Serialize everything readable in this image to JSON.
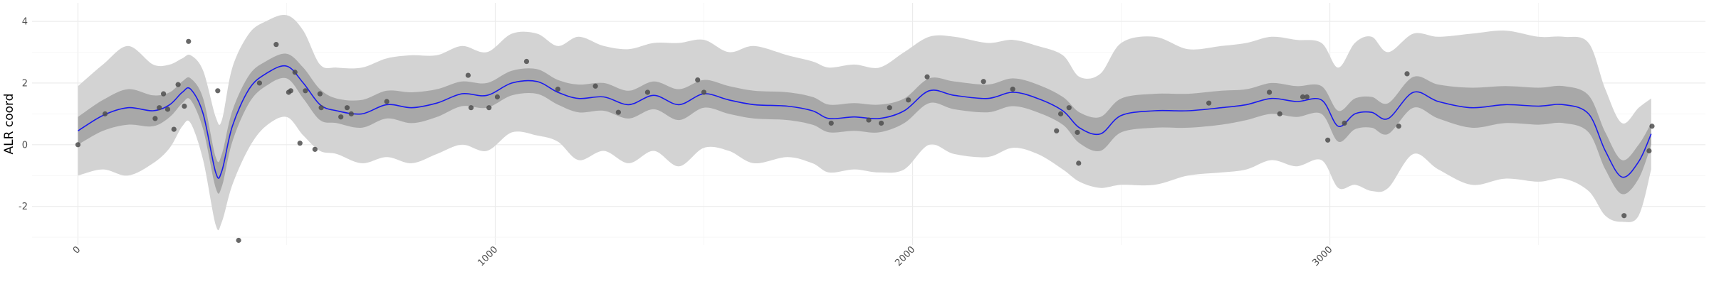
{
  "chart_data": {
    "type": "line",
    "title": "",
    "xlabel": "",
    "ylabel": "ALR coord",
    "xlim": [
      -110,
      3900
    ],
    "ylim": [
      -3.25,
      4.6
    ],
    "x_ticks": [
      0,
      1000,
      2000,
      3000
    ],
    "x_tick_labels": [
      "0",
      "1000",
      "2000",
      "3000"
    ],
    "y_ticks": [
      -2,
      0,
      2,
      4
    ],
    "y_tick_labels": [
      "-2",
      "0",
      "2",
      "4"
    ],
    "grid": true,
    "legend": "none",
    "colors": {
      "mean_line": "#1a1aee",
      "inner_band": "#a8a8a8",
      "outer_band": "#d3d3d3",
      "points": "#4d4d4d",
      "grid_major": "#ebebeb",
      "grid_minor": "#f4f4f4"
    },
    "series": [
      {
        "role": "mean",
        "x": [
          0,
          60,
          120,
          180,
          220,
          250,
          270,
          300,
          330,
          345,
          370,
          410,
          450,
          500,
          540,
          580,
          620,
          680,
          740,
          800,
          860,
          920,
          980,
          1040,
          1100,
          1150,
          1200,
          1260,
          1320,
          1380,
          1440,
          1500,
          1560,
          1620,
          1700,
          1760,
          1800,
          1860,
          1920,
          1980,
          2040,
          2100,
          2180,
          2240,
          2300,
          2360,
          2400,
          2450,
          2500,
          2580,
          2660,
          2740,
          2800,
          2860,
          2920,
          2980,
          3020,
          3060,
          3100,
          3140,
          3200,
          3260,
          3340,
          3420,
          3500,
          3560,
          3620,
          3660,
          3700,
          3740,
          3770
        ],
        "y": [
          0.45,
          0.95,
          1.2,
          1.1,
          1.3,
          1.7,
          1.8,
          1.0,
          -0.9,
          -0.85,
          0.6,
          1.8,
          2.3,
          2.55,
          2.0,
          1.3,
          1.1,
          1.0,
          1.3,
          1.2,
          1.35,
          1.65,
          1.6,
          2.0,
          2.05,
          1.7,
          1.5,
          1.55,
          1.3,
          1.6,
          1.3,
          1.65,
          1.45,
          1.3,
          1.25,
          1.1,
          0.85,
          0.9,
          0.85,
          1.1,
          1.75,
          1.6,
          1.5,
          1.7,
          1.5,
          1.1,
          0.55,
          0.35,
          0.95,
          1.1,
          1.1,
          1.2,
          1.3,
          1.5,
          1.4,
          1.45,
          0.6,
          1.0,
          1.05,
          0.85,
          1.7,
          1.4,
          1.2,
          1.3,
          1.25,
          1.3,
          1.0,
          -0.2,
          -1.05,
          -0.55,
          0.35
        ]
      },
      {
        "role": "inner-band",
        "x": [
          0,
          60,
          120,
          180,
          220,
          250,
          270,
          300,
          330,
          345,
          370,
          410,
          450,
          500,
          540,
          580,
          620,
          680,
          740,
          800,
          860,
          920,
          980,
          1040,
          1100,
          1150,
          1200,
          1260,
          1320,
          1380,
          1440,
          1500,
          1560,
          1620,
          1700,
          1760,
          1800,
          1860,
          1920,
          1980,
          2040,
          2100,
          2180,
          2240,
          2300,
          2360,
          2400,
          2450,
          2500,
          2580,
          2660,
          2740,
          2800,
          2860,
          2920,
          2980,
          3020,
          3060,
          3100,
          3140,
          3200,
          3260,
          3340,
          3420,
          3500,
          3560,
          3620,
          3660,
          3700,
          3740,
          3770
        ],
        "upper": [
          0.9,
          1.45,
          1.8,
          1.6,
          1.7,
          2.05,
          2.15,
          1.5,
          -0.4,
          -0.3,
          1.1,
          2.25,
          2.7,
          2.95,
          2.5,
          1.8,
          1.5,
          1.45,
          1.75,
          1.7,
          1.8,
          2.05,
          2.0,
          2.4,
          2.45,
          2.1,
          1.95,
          2.0,
          1.75,
          2.05,
          1.8,
          2.1,
          1.9,
          1.75,
          1.7,
          1.55,
          1.3,
          1.35,
          1.3,
          1.5,
          2.15,
          2.05,
          1.95,
          2.15,
          1.95,
          1.55,
          1.05,
          0.9,
          1.5,
          1.65,
          1.65,
          1.75,
          1.8,
          2.0,
          1.9,
          1.9,
          1.1,
          1.5,
          1.55,
          1.35,
          2.2,
          1.95,
          1.85,
          1.9,
          1.85,
          1.9,
          1.6,
          0.4,
          -0.5,
          0.0,
          0.7
        ],
        "lower": [
          0.0,
          0.45,
          0.65,
          0.6,
          0.9,
          1.35,
          1.45,
          0.5,
          -1.4,
          -1.35,
          0.1,
          1.35,
          1.9,
          2.15,
          1.5,
          0.8,
          0.7,
          0.55,
          0.85,
          0.7,
          0.9,
          1.25,
          1.2,
          1.6,
          1.65,
          1.3,
          1.05,
          1.1,
          0.85,
          1.15,
          0.8,
          1.2,
          1.0,
          0.85,
          0.8,
          0.65,
          0.4,
          0.45,
          0.4,
          0.7,
          1.35,
          1.15,
          1.05,
          1.25,
          1.05,
          0.65,
          0.05,
          -0.2,
          0.4,
          0.55,
          0.55,
          0.65,
          0.8,
          1.0,
          0.9,
          1.0,
          0.1,
          0.5,
          0.55,
          0.35,
          1.2,
          0.85,
          0.55,
          0.7,
          0.65,
          0.7,
          0.4,
          -0.8,
          -1.6,
          -1.1,
          0.0
        ]
      },
      {
        "role": "outer-band",
        "x": [
          0,
          60,
          120,
          180,
          220,
          250,
          270,
          300,
          330,
          345,
          370,
          410,
          450,
          500,
          540,
          580,
          620,
          680,
          740,
          800,
          860,
          920,
          980,
          1040,
          1100,
          1150,
          1200,
          1260,
          1320,
          1380,
          1440,
          1500,
          1560,
          1620,
          1700,
          1760,
          1800,
          1860,
          1920,
          1980,
          2040,
          2100,
          2180,
          2240,
          2300,
          2360,
          2400,
          2450,
          2500,
          2580,
          2660,
          2740,
          2800,
          2860,
          2920,
          2980,
          3020,
          3060,
          3100,
          3140,
          3200,
          3260,
          3340,
          3420,
          3500,
          3560,
          3620,
          3660,
          3700,
          3740,
          3770
        ],
        "upper": [
          1.9,
          2.6,
          3.2,
          2.6,
          2.6,
          2.8,
          2.9,
          2.4,
          0.9,
          0.8,
          2.5,
          3.6,
          4.0,
          4.2,
          3.7,
          2.6,
          2.5,
          2.5,
          2.8,
          2.9,
          2.9,
          3.2,
          3.0,
          3.6,
          3.6,
          3.2,
          3.5,
          3.2,
          3.1,
          3.3,
          3.3,
          3.4,
          3.0,
          3.2,
          2.9,
          2.7,
          2.5,
          2.6,
          2.5,
          3.0,
          3.5,
          3.5,
          3.3,
          3.4,
          3.2,
          2.9,
          2.2,
          2.3,
          3.3,
          3.5,
          3.1,
          3.2,
          3.3,
          3.5,
          3.4,
          3.3,
          2.5,
          3.3,
          3.5,
          3.0,
          3.6,
          3.5,
          3.6,
          3.7,
          3.5,
          3.5,
          3.3,
          1.8,
          0.7,
          1.2,
          1.5
        ],
        "lower": [
          -1.0,
          -0.8,
          -1.0,
          -0.6,
          -0.1,
          0.6,
          0.7,
          -0.5,
          -2.6,
          -2.5,
          -1.3,
          -0.1,
          0.6,
          0.9,
          0.3,
          -0.2,
          -0.3,
          -0.6,
          -0.4,
          -0.6,
          -0.3,
          0.0,
          -0.2,
          0.4,
          0.3,
          0.1,
          -0.5,
          -0.2,
          -0.6,
          -0.2,
          -0.7,
          -0.1,
          -0.2,
          -0.6,
          -0.4,
          -0.6,
          -0.9,
          -0.8,
          -0.9,
          -0.8,
          0.0,
          -0.3,
          -0.4,
          -0.1,
          -0.3,
          -0.8,
          -1.2,
          -1.4,
          -1.3,
          -1.3,
          -1.0,
          -0.9,
          -0.8,
          -0.5,
          -0.7,
          -0.5,
          -1.4,
          -1.3,
          -1.5,
          -1.4,
          -0.3,
          -0.8,
          -1.3,
          -1.1,
          -1.2,
          -1.1,
          -1.5,
          -2.3,
          -2.5,
          -2.3,
          -0.8
        ]
      },
      {
        "role": "observed",
        "x": [
          0,
          65,
          185,
          195,
          205,
          215,
          230,
          240,
          255,
          265,
          335,
          385,
          435,
          475,
          505,
          510,
          520,
          532,
          545,
          568,
          580,
          583,
          630,
          645,
          655,
          740,
          935,
          942,
          985,
          1005,
          1075,
          1150,
          1240,
          1295,
          1365,
          1485,
          1500,
          1805,
          1895,
          1925,
          1945,
          1990,
          2035,
          2170,
          2240,
          2345,
          2355,
          2375,
          2395,
          2398,
          2710,
          2855,
          2880,
          2935,
          2945,
          2995,
          3035,
          3165,
          3185,
          3705,
          3765,
          3772
        ],
        "y": [
          0.0,
          1.0,
          0.85,
          1.2,
          1.65,
          1.15,
          0.5,
          1.95,
          1.25,
          3.35,
          1.75,
          -3.1,
          2.0,
          3.25,
          1.7,
          1.75,
          2.35,
          0.05,
          1.75,
          -0.15,
          1.65,
          1.2,
          0.9,
          1.2,
          1.0,
          1.4,
          2.25,
          1.2,
          1.2,
          1.55,
          2.7,
          1.8,
          1.9,
          1.05,
          1.7,
          2.1,
          1.7,
          0.7,
          0.8,
          0.7,
          1.2,
          1.45,
          2.2,
          2.05,
          1.8,
          0.45,
          1.0,
          1.2,
          0.4,
          -0.6,
          1.35,
          1.7,
          1.0,
          1.55,
          1.55,
          0.15,
          0.7,
          0.6,
          2.3,
          -2.3,
          -0.2,
          0.6
        ]
      }
    ]
  }
}
